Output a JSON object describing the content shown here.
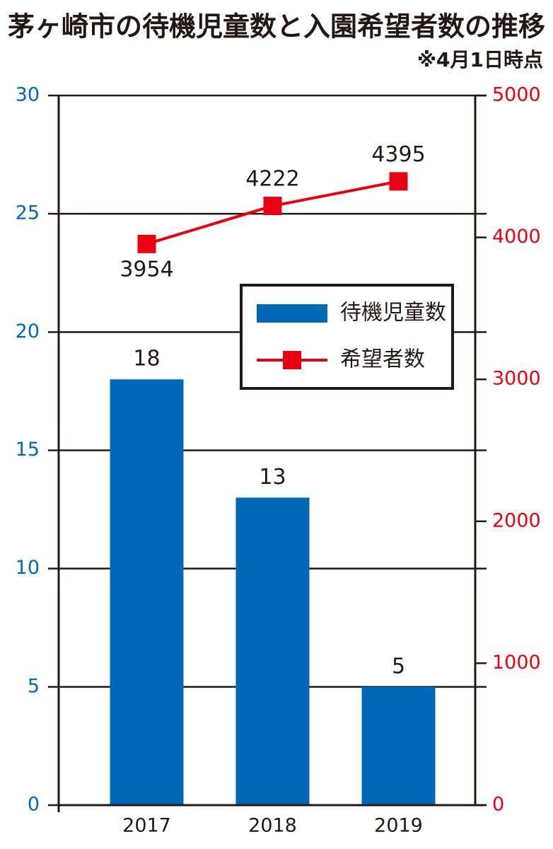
{
  "chart_data": {
    "type": "bar-line",
    "title": "茅ヶ崎市の待機児童数と入園希望者数の推移",
    "subtitle": "※4月1日時点",
    "categories": [
      "2017",
      "2018",
      "2019"
    ],
    "series": [
      {
        "name": "待機児童数",
        "type": "bar",
        "color": "#0068b7",
        "values": [
          18,
          13,
          5
        ]
      },
      {
        "name": "希望者数",
        "type": "line",
        "axis": "y2",
        "color": "#e60012",
        "values": [
          3954,
          4222,
          4395
        ]
      }
    ],
    "ylim": [
      0,
      30
    ],
    "yticks": [
      0,
      5,
      10,
      15,
      20,
      25,
      30
    ],
    "y2lim": [
      0,
      5000
    ],
    "y2ticks": [
      0,
      1000,
      2000,
      3000,
      4000,
      5000
    ],
    "grid": true,
    "legend": "upper right",
    "ytick_color": "#0068b7",
    "y2tick_color": "#e60012"
  }
}
